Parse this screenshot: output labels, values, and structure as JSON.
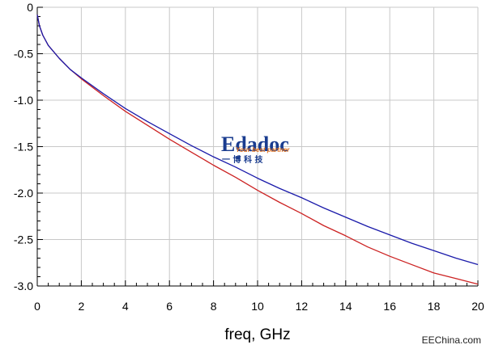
{
  "chart_data": {
    "type": "line",
    "title": "",
    "xlabel": "freq, GHz",
    "ylabel": "",
    "xlim": [
      0,
      20
    ],
    "ylim": [
      -3.0,
      0
    ],
    "grid": true,
    "x_ticks": [
      0,
      2,
      4,
      6,
      8,
      10,
      12,
      14,
      16,
      18,
      20
    ],
    "y_ticks": [
      0,
      -0.5,
      -1.0,
      -1.5,
      -2.0,
      -2.5,
      -3.0
    ],
    "x_tick_labels": [
      "0",
      "2",
      "4",
      "6",
      "8",
      "10",
      "12",
      "14",
      "16",
      "18",
      "20"
    ],
    "y_tick_labels": [
      "0",
      "-0.5",
      "-1.0",
      "-1.5",
      "-2.0",
      "-2.5",
      "-3.0"
    ],
    "series": [
      {
        "color": "#cc2222",
        "x": [
          0,
          0.1,
          0.25,
          0.5,
          1,
          1.5,
          2,
          3,
          4,
          5,
          6,
          7,
          8,
          9,
          10,
          11,
          12,
          13,
          14,
          15,
          16,
          17,
          18,
          19,
          20
        ],
        "y": [
          -0.08,
          -0.2,
          -0.3,
          -0.41,
          -0.55,
          -0.67,
          -0.77,
          -0.95,
          -1.12,
          -1.27,
          -1.42,
          -1.56,
          -1.7,
          -1.83,
          -1.97,
          -2.1,
          -2.22,
          -2.35,
          -2.46,
          -2.58,
          -2.68,
          -2.77,
          -2.86,
          -2.92,
          -2.98
        ]
      },
      {
        "color": "#1a1aaa",
        "x": [
          0,
          0.1,
          0.25,
          0.5,
          1,
          1.5,
          2,
          3,
          4,
          5,
          6,
          7,
          8,
          9,
          10,
          11,
          12,
          13,
          14,
          15,
          16,
          17,
          18,
          19,
          20
        ],
        "y": [
          -0.08,
          -0.2,
          -0.3,
          -0.41,
          -0.55,
          -0.67,
          -0.76,
          -0.93,
          -1.09,
          -1.23,
          -1.36,
          -1.49,
          -1.61,
          -1.72,
          -1.84,
          -1.95,
          -2.05,
          -2.16,
          -2.26,
          -2.36,
          -2.45,
          -2.54,
          -2.62,
          -2.7,
          -2.77
        ]
      }
    ]
  },
  "watermarks": {
    "logo_main": "Edadoc",
    "logo_tagline": "Your best partner",
    "logo_chinese": "一  博  科  技",
    "corner": "EEChina.com"
  },
  "colors": {
    "grid": "#c8c8c8",
    "axis": "#000000"
  }
}
